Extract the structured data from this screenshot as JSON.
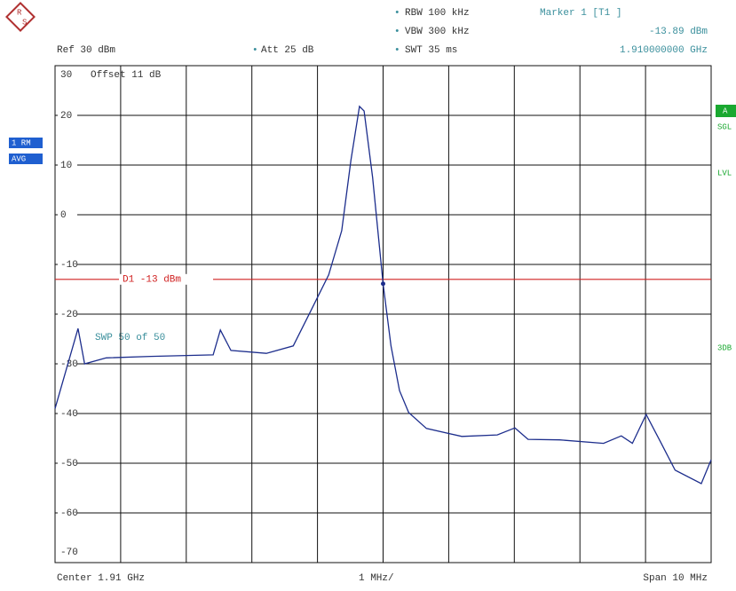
{
  "logo": [
    "R",
    "S"
  ],
  "header": {
    "rbw": "RBW 100 kHz",
    "vbw": "VBW 300 kHz",
    "swt": "SWT 35 ms",
    "marker_title": "Marker 1 [T1 ]",
    "ref": "Ref 30 dBm",
    "att": "Att 25 dB",
    "offset": "Offset 11 dB"
  },
  "side": {
    "trace": "1 RM",
    "mode": "AVG",
    "a": "A",
    "sgl": "SGL",
    "lvl": "LVL",
    "db3": "3DB"
  },
  "sweep": "SWP 50 of 50",
  "footer": {
    "center": "Center 1.91 GHz",
    "div": "1 MHz/",
    "span": "Span 10 MHz"
  },
  "chart_data": {
    "type": "line",
    "x": [
      1.905,
      1.90535,
      1.90545,
      1.90578,
      1.90646,
      1.90741,
      1.90752,
      1.90768,
      1.90822,
      1.90863,
      1.9089,
      1.90917,
      1.90937,
      1.90951,
      1.90964,
      1.90971,
      1.90984,
      1.91,
      1.91012,
      1.91025,
      1.91039,
      1.91066,
      1.9112,
      1.91174,
      1.91201,
      1.91221,
      1.91269,
      1.91336,
      1.91363,
      1.9138,
      1.91401,
      1.91424,
      1.91445,
      1.91485,
      1.915
    ],
    "series": [
      {
        "color": "#1c2d8c",
        "values": [
          -39,
          -22.9,
          -30,
          -28.8,
          -28.5,
          -28.2,
          -23.2,
          -27.3,
          -27.9,
          -26.4,
          -19.3,
          -12.1,
          -3.2,
          11,
          21.8,
          20.9,
          7.5,
          -13.89,
          -26.4,
          -35.4,
          -39.8,
          -43,
          -44.6,
          -44.3,
          -42.9,
          -45.2,
          -45.3,
          -46,
          -44.5,
          -46,
          -40.2,
          -46,
          -51.4,
          -54.1,
          -49.3
        ]
      }
    ],
    "xlim": [
      1.905,
      1.915
    ],
    "ylim": [
      -70,
      30
    ],
    "yticks": [
      30,
      20,
      10,
      0,
      -10,
      -20,
      -30,
      -40,
      -50,
      -60,
      -70
    ],
    "display_line": {
      "value": -13,
      "label": "D1 -13 dBm",
      "color": "#d02020"
    },
    "marker": {
      "x": 1.91,
      "y": -13.89,
      "y_label": "-13.89 dBm",
      "x_label": "1.910000000 GHz"
    }
  }
}
